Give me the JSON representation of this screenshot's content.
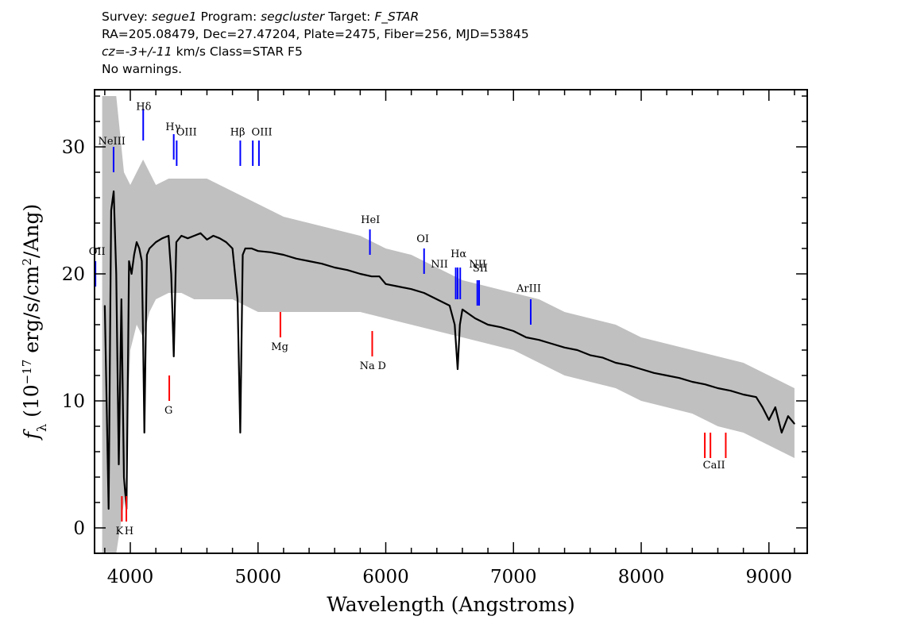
{
  "header": {
    "line1": [
      {
        "text": "Survey: ",
        "italic": false
      },
      {
        "text": "segue1",
        "italic": true
      },
      {
        "text": " Program: ",
        "italic": false
      },
      {
        "text": "segcluster",
        "italic": true
      },
      {
        "text": " Target: ",
        "italic": false
      },
      {
        "text": "F_STAR",
        "italic": true
      }
    ],
    "line2": "RA=205.08479, Dec=27.47204, Plate=2475, Fiber=256, MJD=53845",
    "line3": [
      {
        "text": "cz=-3+/-11",
        "italic": true
      },
      {
        "text": " km/s Class=STAR F5",
        "italic": false
      }
    ],
    "line4": "No warnings."
  },
  "chart_data": {
    "type": "line",
    "xlabel": "Wavelength (Angstroms)",
    "ylabel": "f_λ (10^-17 erg/s/cm^2/Ang)",
    "ylabel_parts": {
      "symbol": "f",
      "subscript": "λ",
      "prefix": " (10",
      "exp1": "−17",
      "mid": " erg/s/cm",
      "exp2": "2",
      "suffix": "/Ang)"
    },
    "xlim": [
      3720,
      9300
    ],
    "ylim": [
      -2,
      34.5
    ],
    "xticks": [
      4000,
      5000,
      6000,
      7000,
      8000,
      9000
    ],
    "yticks": [
      0,
      10,
      20,
      30
    ],
    "series": [
      {
        "color": "#000000",
        "x": [
          3800,
          3830,
          3850,
          3870,
          3890,
          3910,
          3930,
          3950,
          3970,
          3990,
          4010,
          4030,
          4050,
          4070,
          4090,
          4100,
          4110,
          4130,
          4150,
          4200,
          4250,
          4300,
          4320,
          4340,
          4360,
          4400,
          4450,
          4500,
          4550,
          4600,
          4650,
          4700,
          4750,
          4800,
          4840,
          4861,
          4880,
          4900,
          4950,
          5000,
          5100,
          5200,
          5300,
          5400,
          5500,
          5600,
          5700,
          5800,
          5890,
          5950,
          6000,
          6100,
          6200,
          6300,
          6400,
          6500,
          6540,
          6563,
          6580,
          6600,
          6700,
          6800,
          6900,
          7000,
          7100,
          7200,
          7300,
          7400,
          7500,
          7600,
          7700,
          7800,
          7900,
          8000,
          8100,
          8200,
          8300,
          8400,
          8500,
          8600,
          8700,
          8800,
          8900,
          8950,
          9000,
          9050,
          9100,
          9150,
          9200
        ],
        "y": [
          17.5,
          1.5,
          25.0,
          26.5,
          20.0,
          5.0,
          18.0,
          4.0,
          1.5,
          21.0,
          20.0,
          21.5,
          22.5,
          22.0,
          21.0,
          15.0,
          7.5,
          21.5,
          22.0,
          22.5,
          22.8,
          23.0,
          20.0,
          13.5,
          22.5,
          23.0,
          22.8,
          23.0,
          23.2,
          22.7,
          23.0,
          22.8,
          22.5,
          22.0,
          18.0,
          7.5,
          21.5,
          22.0,
          22.0,
          21.8,
          21.7,
          21.5,
          21.2,
          21.0,
          20.8,
          20.5,
          20.3,
          20.0,
          19.8,
          19.8,
          19.2,
          19.0,
          18.8,
          18.5,
          18.0,
          17.5,
          16.0,
          12.5,
          16.0,
          17.2,
          16.5,
          16.0,
          15.8,
          15.5,
          15.0,
          14.8,
          14.5,
          14.2,
          14.0,
          13.6,
          13.4,
          13.0,
          12.8,
          12.5,
          12.2,
          12.0,
          11.8,
          11.5,
          11.3,
          11.0,
          10.8,
          10.5,
          10.3,
          9.5,
          8.5,
          9.5,
          7.5,
          8.8,
          8.2
        ]
      }
    ],
    "error_band": {
      "color": "#c0c0c0",
      "x": [
        3780,
        3800,
        3830,
        3850,
        3870,
        3890,
        3920,
        3950,
        4000,
        4050,
        4100,
        4150,
        4200,
        4300,
        4400,
        4500,
        4600,
        4700,
        4800,
        4900,
        5000,
        5200,
        5400,
        5600,
        5800,
        6000,
        6200,
        6400,
        6600,
        6800,
        7000,
        7200,
        7400,
        7600,
        7800,
        8000,
        8200,
        8400,
        8600,
        8800,
        9000,
        9200
      ],
      "upper": [
        34.0,
        34.0,
        34.0,
        34.0,
        34.0,
        34.0,
        31.0,
        28.0,
        27.0,
        28.0,
        29.0,
        28.0,
        27.0,
        27.5,
        27.5,
        27.5,
        27.5,
        27.0,
        26.5,
        26.0,
        25.5,
        24.5,
        24.0,
        23.5,
        23.0,
        22.0,
        21.5,
        20.5,
        19.5,
        19.0,
        18.5,
        18.0,
        17.0,
        16.5,
        16.0,
        15.0,
        14.5,
        14.0,
        13.5,
        13.0,
        12.0,
        11.0
      ],
      "lower": [
        -2.0,
        -2.0,
        -2.0,
        -2.0,
        -2.0,
        -2.0,
        0.0,
        2.0,
        14.0,
        16.0,
        15.0,
        17.0,
        18.0,
        18.5,
        18.5,
        18.0,
        18.0,
        18.0,
        18.0,
        17.5,
        17.0,
        17.0,
        17.0,
        17.0,
        17.0,
        16.5,
        16.0,
        15.5,
        15.0,
        14.5,
        14.0,
        13.0,
        12.0,
        11.5,
        11.0,
        10.0,
        9.5,
        9.0,
        8.0,
        7.5,
        6.5,
        5.5
      ]
    },
    "emission_lines": [
      {
        "label": "OII",
        "x": 3727,
        "y_top": 21.0,
        "y_bottom": 19.0
      },
      {
        "label": "NeIII",
        "x": 3869,
        "y_top": 30.0,
        "y_bottom": 28.0
      },
      {
        "label": "Hδ",
        "x": 4101,
        "y_top": 33.0,
        "y_bottom": 30.5
      },
      {
        "label": "Hγ",
        "x": 4340,
        "y_top": 31.0,
        "y_bottom": 29.0
      },
      {
        "label": "OIII",
        "x": 4363,
        "y_top": 30.5,
        "y_bottom": 28.5
      },
      {
        "label": "Hβ",
        "x": 4861,
        "y_top": 30.5,
        "y_bottom": 28.5
      },
      {
        "label": "OIII",
        "x": 4959,
        "y_top": 30.5,
        "y_bottom": 28.5
      },
      {
        "label": "OIII",
        "x": 5007,
        "y_top": 30.5,
        "y_bottom": 28.5
      },
      {
        "label": "HeI",
        "x": 5876,
        "y_top": 23.5,
        "y_bottom": 21.5
      },
      {
        "label": "OI",
        "x": 6300,
        "y_top": 22.0,
        "y_bottom": 20.0
      },
      {
        "label": "NII",
        "x": 6548,
        "y_top": 20.5,
        "y_bottom": 18.0
      },
      {
        "label": "Hα",
        "x": 6563,
        "y_top": 20.5,
        "y_bottom": 18.0
      },
      {
        "label": "NII",
        "x": 6583,
        "y_top": 20.5,
        "y_bottom": 18.0
      },
      {
        "label": "SII",
        "x": 6717,
        "y_top": 19.5,
        "y_bottom": 17.5
      },
      {
        "label": "SII",
        "x": 6731,
        "y_top": 19.5,
        "y_bottom": 17.5
      },
      {
        "label": "ArIII",
        "x": 7135,
        "y_top": 18.0,
        "y_bottom": 16.0
      }
    ],
    "absorption_lines": [
      {
        "label": "K",
        "x": 3934,
        "y_top": 2.5,
        "y_bottom": 0.5
      },
      {
        "label": "H",
        "x": 3969,
        "y_top": 2.5,
        "y_bottom": 0.5
      },
      {
        "label": "G",
        "x": 4305,
        "y_top": 12.0,
        "y_bottom": 10.0
      },
      {
        "label": "Mg",
        "x": 5175,
        "y_top": 17.0,
        "y_bottom": 15.0
      },
      {
        "label": "Na D",
        "x": 5894,
        "y_top": 15.5,
        "y_bottom": 13.5
      },
      {
        "label": "CaII",
        "x": 8498,
        "y_top": 7.5,
        "y_bottom": 5.5
      },
      {
        "label": "CaII",
        "x": 8542,
        "y_top": 7.5,
        "y_bottom": 5.5
      },
      {
        "label": "CaII",
        "x": 8662,
        "y_top": 7.5,
        "y_bottom": 5.5
      }
    ],
    "emission_labels": [
      {
        "text": "OII",
        "x": 3740,
        "y": 21.5
      },
      {
        "text": "NeIII",
        "x": 3855,
        "y": 30.2
      },
      {
        "text": "Hδ",
        "x": 4105,
        "y": 32.9
      },
      {
        "text": "Hγ",
        "x": 4335,
        "y": 31.3
      },
      {
        "text": "OIII",
        "x": 4440,
        "y": 30.9
      },
      {
        "text": "Hβ",
        "x": 4840,
        "y": 30.9
      },
      {
        "text": "OIII",
        "x": 5030,
        "y": 30.9
      },
      {
        "text": "HeI",
        "x": 5880,
        "y": 24.0
      },
      {
        "text": "OI",
        "x": 6290,
        "y": 22.5
      },
      {
        "text": "NII",
        "x": 6420,
        "y": 20.5
      },
      {
        "text": "Hα",
        "x": 6570,
        "y": 21.3
      },
      {
        "text": "NII",
        "x": 6720,
        "y": 20.5
      },
      {
        "text": "SII",
        "x": 6740,
        "y": 20.2
      },
      {
        "text": "ArIII",
        "x": 7120,
        "y": 18.6
      }
    ],
    "absorption_labels": [
      {
        "text": "K",
        "x": 3915,
        "y": -0.5
      },
      {
        "text": "H",
        "x": 3990,
        "y": -0.5
      },
      {
        "text": "G",
        "x": 4300,
        "y": 9.0
      },
      {
        "text": "Mg",
        "x": 5170,
        "y": 14.0
      },
      {
        "text": "Na",
        "x": 5855,
        "y": 12.5
      },
      {
        "text": "D",
        "x": 5970,
        "y": 12.5
      },
      {
        "text": "CaII",
        "x": 8570,
        "y": 4.7
      }
    ],
    "colors": {
      "emission": "#0000ff",
      "absorption": "#ff0000",
      "spectrum": "#000000",
      "error": "#c0c0c0"
    }
  }
}
